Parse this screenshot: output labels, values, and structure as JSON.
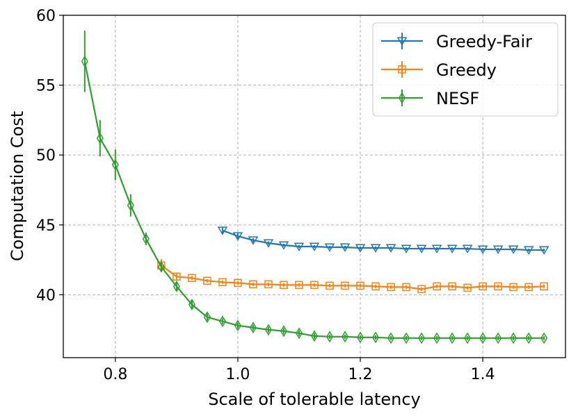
{
  "chart_data": {
    "type": "line",
    "title": "",
    "xlabel": "Scale of tolerable latency",
    "ylabel": "Computation Cost",
    "xlim": [
      0.715,
      1.535
    ],
    "ylim": [
      35.5,
      60
    ],
    "xticks": [
      0.8,
      1.0,
      1.2,
      1.4
    ],
    "xtick_labels": [
      "0.8",
      "1.0",
      "1.2",
      "1.4"
    ],
    "yticks": [
      40,
      45,
      50,
      55,
      60
    ],
    "ytick_labels": [
      "40",
      "45",
      "50",
      "55",
      "60"
    ],
    "grid": true,
    "legend_position": "top-right",
    "series": [
      {
        "name": "Greedy-Fair",
        "color": "#1f77b4",
        "marker": "triangle-down",
        "x": [
          0.975,
          1.0,
          1.025,
          1.05,
          1.075,
          1.1,
          1.125,
          1.15,
          1.175,
          1.2,
          1.225,
          1.25,
          1.275,
          1.3,
          1.325,
          1.35,
          1.375,
          1.4,
          1.425,
          1.45,
          1.475,
          1.5
        ],
        "y": [
          44.6,
          44.2,
          43.9,
          43.7,
          43.55,
          43.45,
          43.45,
          43.4,
          43.4,
          43.35,
          43.35,
          43.35,
          43.3,
          43.3,
          43.3,
          43.3,
          43.3,
          43.25,
          43.25,
          43.25,
          43.2,
          43.2
        ],
        "err": [
          0.25,
          0.2,
          0.15,
          0.12,
          0.1,
          0.1,
          0.1,
          0.1,
          0.1,
          0.1,
          0.1,
          0.1,
          0.1,
          0.1,
          0.1,
          0.1,
          0.1,
          0.1,
          0.1,
          0.1,
          0.1,
          0.1
        ]
      },
      {
        "name": "Greedy",
        "color": "#ff7f0e",
        "marker": "square",
        "x": [
          0.875,
          0.9,
          0.925,
          0.95,
          0.975,
          1.0,
          1.025,
          1.05,
          1.075,
          1.1,
          1.125,
          1.15,
          1.175,
          1.2,
          1.225,
          1.25,
          1.275,
          1.3,
          1.325,
          1.35,
          1.375,
          1.4,
          1.425,
          1.45,
          1.475,
          1.5
        ],
        "y": [
          42.1,
          41.3,
          41.2,
          41.0,
          40.9,
          40.85,
          40.75,
          40.75,
          40.7,
          40.7,
          40.7,
          40.65,
          40.65,
          40.65,
          40.6,
          40.55,
          40.55,
          40.4,
          40.6,
          40.6,
          40.5,
          40.6,
          40.6,
          40.55,
          40.55,
          40.6
        ],
        "err": [
          0.45,
          0.2,
          0.15,
          0.12,
          0.12,
          0.12,
          0.12,
          0.12,
          0.12,
          0.12,
          0.12,
          0.12,
          0.12,
          0.12,
          0.12,
          0.12,
          0.12,
          0.12,
          0.12,
          0.12,
          0.12,
          0.12,
          0.12,
          0.12,
          0.12,
          0.12
        ]
      },
      {
        "name": "NESF",
        "color": "#2ca02c",
        "marker": "thin-diamond",
        "x": [
          0.75,
          0.775,
          0.8,
          0.825,
          0.85,
          0.875,
          0.9,
          0.925,
          0.95,
          0.975,
          1.0,
          1.025,
          1.05,
          1.075,
          1.1,
          1.125,
          1.15,
          1.175,
          1.2,
          1.225,
          1.25,
          1.275,
          1.3,
          1.325,
          1.35,
          1.375,
          1.4,
          1.425,
          1.45,
          1.475,
          1.5
        ],
        "y": [
          56.7,
          51.2,
          49.3,
          46.4,
          44.0,
          42.0,
          40.6,
          39.3,
          38.4,
          38.1,
          37.8,
          37.65,
          37.5,
          37.4,
          37.25,
          37.05,
          37.0,
          37.0,
          36.95,
          36.95,
          36.9,
          36.9,
          36.9,
          36.9,
          36.9,
          36.9,
          36.9,
          36.9,
          36.9,
          36.9,
          36.9
        ],
        "err": [
          2.2,
          1.3,
          1.1,
          0.8,
          0.45,
          0.3,
          0.3,
          0.3,
          0.25,
          0.2,
          0.2,
          0.2,
          0.2,
          0.2,
          0.2,
          0.2,
          0.15,
          0.15,
          0.15,
          0.15,
          0.15,
          0.15,
          0.15,
          0.15,
          0.15,
          0.15,
          0.15,
          0.15,
          0.15,
          0.15,
          0.15
        ]
      }
    ]
  }
}
